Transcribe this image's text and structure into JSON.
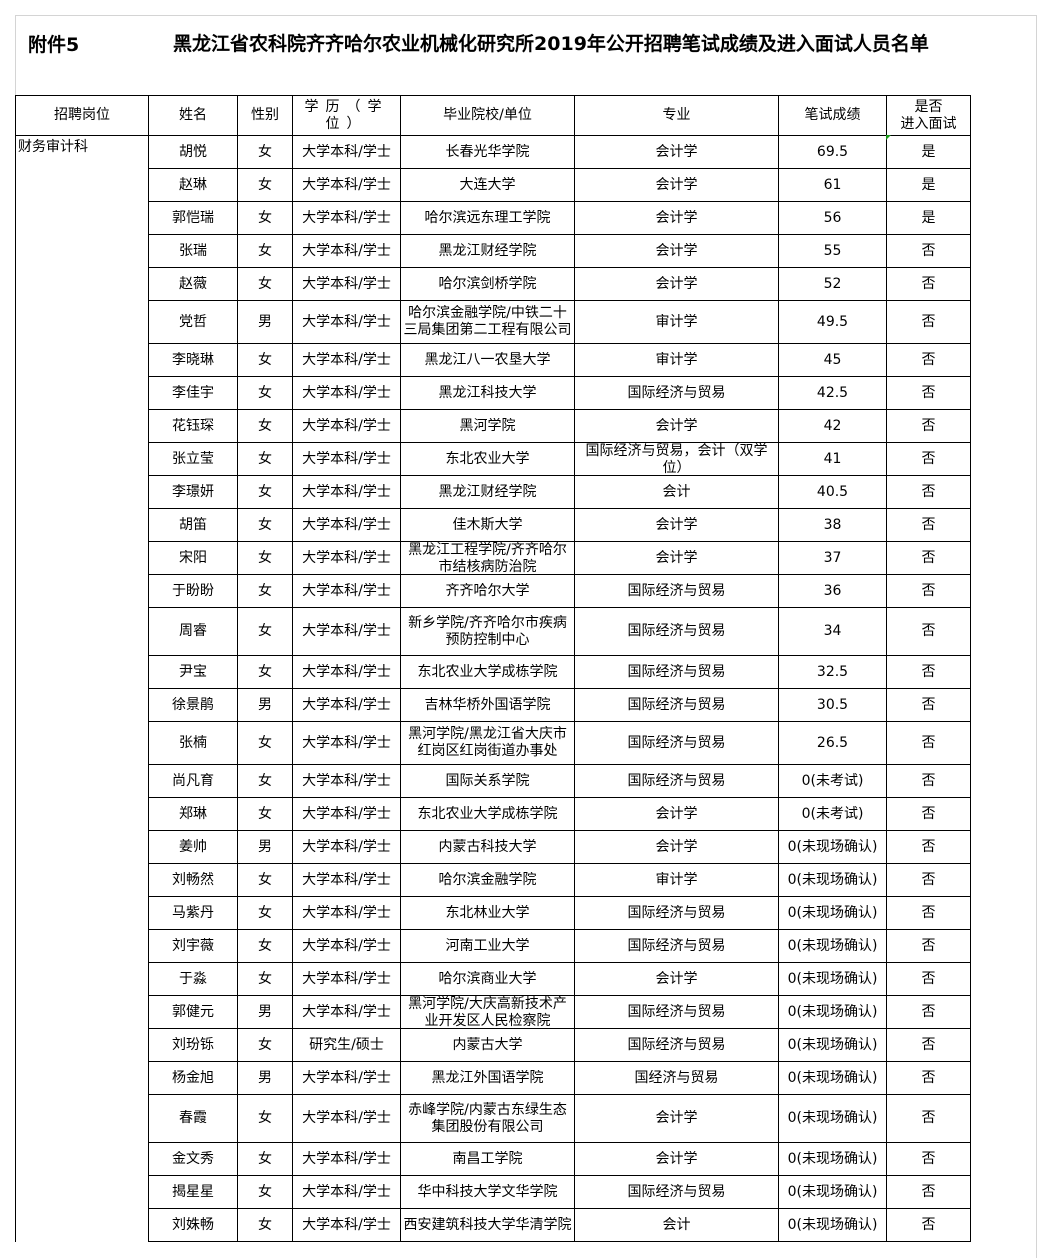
{
  "header": {
    "attachment": "附件5",
    "title": "黑龙江省农科院齐齐哈尔农业机械化研究所2019年公开招聘笔试成绩及进入面试人员名单"
  },
  "columns": [
    "招聘岗位",
    "姓名",
    "性别",
    "学历（学位）",
    "毕业院校/单位",
    "专业",
    "笔试成绩",
    "是否进入面试"
  ],
  "columns_display": {
    "edu_a": "学历",
    "edu_b": "（学",
    "edu_c": "位）",
    "interview_a": "是否",
    "interview_b": "进入面试"
  },
  "position": "财务审计科",
  "rows": [
    [
      "胡悦",
      "女",
      "大学本科/学士",
      "长春光华学院",
      "会计学",
      "69.5",
      "是"
    ],
    [
      "赵琳",
      "女",
      "大学本科/学士",
      "大连大学",
      "会计学",
      "61",
      "是"
    ],
    [
      "郭恺瑞",
      "女",
      "大学本科/学士",
      "哈尔滨远东理工学院",
      "会计学",
      "56",
      "是"
    ],
    [
      "张瑞",
      "女",
      "大学本科/学士",
      "黑龙江财经学院",
      "会计学",
      "55",
      "否"
    ],
    [
      "赵薇",
      "女",
      "大学本科/学士",
      "哈尔滨剑桥学院",
      "会计学",
      "52",
      "否"
    ],
    [
      "党哲",
      "男",
      "大学本科/学士",
      "哈尔滨金融学院/中铁二十三局集团第二工程有限公司",
      "审计学",
      "49.5",
      "否"
    ],
    [
      "李晓琳",
      "女",
      "大学本科/学士",
      "黑龙江八一农垦大学",
      "审计学",
      "45",
      "否"
    ],
    [
      "李佳宇",
      "女",
      "大学本科/学士",
      "黑龙江科技大学",
      "国际经济与贸易",
      "42.5",
      "否"
    ],
    [
      "花钰琛",
      "女",
      "大学本科/学士",
      "黑河学院",
      "会计学",
      "42",
      "否"
    ],
    [
      "张立莹",
      "女",
      "大学本科/学士",
      "东北农业大学",
      "国际经济与贸易，会计（双学位）",
      "41",
      "否"
    ],
    [
      "李璟妍",
      "女",
      "大学本科/学士",
      "黑龙江财经学院",
      "会计",
      "40.5",
      "否"
    ],
    [
      "胡笛",
      "女",
      "大学本科/学士",
      "佳木斯大学",
      "会计学",
      "38",
      "否"
    ],
    [
      "宋阳",
      "女",
      "大学本科/学士",
      "黑龙江工程学院/齐齐哈尔市结核病防治院",
      "会计学",
      "37",
      "否"
    ],
    [
      "于盼盼",
      "女",
      "大学本科/学士",
      "齐齐哈尔大学",
      "国际经济与贸易",
      "36",
      "否"
    ],
    [
      "周睿",
      "女",
      "大学本科/学士",
      "新乡学院/齐齐哈尔市疾病预防控制中心",
      "国际经济与贸易",
      "34",
      "否"
    ],
    [
      "尹宝",
      "女",
      "大学本科/学士",
      "东北农业大学成栋学院",
      "国际经济与贸易",
      "32.5",
      "否"
    ],
    [
      "徐景鹃",
      "男",
      "大学本科/学士",
      "吉林华桥外国语学院",
      "国际经济与贸易",
      "30.5",
      "否"
    ],
    [
      "张楠",
      "女",
      "大学本科/学士",
      "黑河学院/黑龙江省大庆市红岗区红岗街道办事处",
      "国际经济与贸易",
      "26.5",
      "否"
    ],
    [
      "尚凡育",
      "女",
      "大学本科/学士",
      "国际关系学院",
      "国际经济与贸易",
      "0(未考试)",
      "否"
    ],
    [
      "郑琳",
      "女",
      "大学本科/学士",
      "东北农业大学成栋学院",
      "会计学",
      "0(未考试)",
      "否"
    ],
    [
      "姜帅",
      "男",
      "大学本科/学士",
      "内蒙古科技大学",
      "会计学",
      "0(未现场确认)",
      "否"
    ],
    [
      "刘畅然",
      "女",
      "大学本科/学士",
      "哈尔滨金融学院",
      "审计学",
      "0(未现场确认)",
      "否"
    ],
    [
      "马紫丹",
      "女",
      "大学本科/学士",
      "东北林业大学",
      "国际经济与贸易",
      "0(未现场确认)",
      "否"
    ],
    [
      "刘宇薇",
      "女",
      "大学本科/学士",
      "河南工业大学",
      "国际经济与贸易",
      "0(未现场确认)",
      "否"
    ],
    [
      "于淼",
      "女",
      "大学本科/学士",
      "哈尔滨商业大学",
      "会计学",
      "0(未现场确认)",
      "否"
    ],
    [
      "郭健元",
      "男",
      "大学本科/学士",
      "黑河学院/大庆高新技术产业开发区人民检察院",
      "国际经济与贸易",
      "0(未现场确认)",
      "否"
    ],
    [
      "刘玢铄",
      "女",
      "研究生/硕士",
      "内蒙古大学",
      "国际经济与贸易",
      "0(未现场确认)",
      "否"
    ],
    [
      "杨金旭",
      "男",
      "大学本科/学士",
      "黑龙江外国语学院",
      "国经济与贸易",
      "0(未现场确认)",
      "否"
    ],
    [
      "春霞",
      "女",
      "大学本科/学士",
      "赤峰学院/内蒙古东绿生态集团股份有限公司",
      "会计学",
      "0(未现场确认)",
      "否"
    ],
    [
      "金文秀",
      "女",
      "大学本科/学士",
      "南昌工学院",
      "会计学",
      "0(未现场确认)",
      "否"
    ],
    [
      "揭星星",
      "女",
      "大学本科/学士",
      "华中科技大学文华学院",
      "国际经济与贸易",
      "0(未现场确认)",
      "否"
    ],
    [
      "刘姝畅",
      "女",
      "大学本科/学士",
      "西安建筑科技大学华清学院",
      "会计",
      "0(未现场确认)",
      "否"
    ]
  ]
}
